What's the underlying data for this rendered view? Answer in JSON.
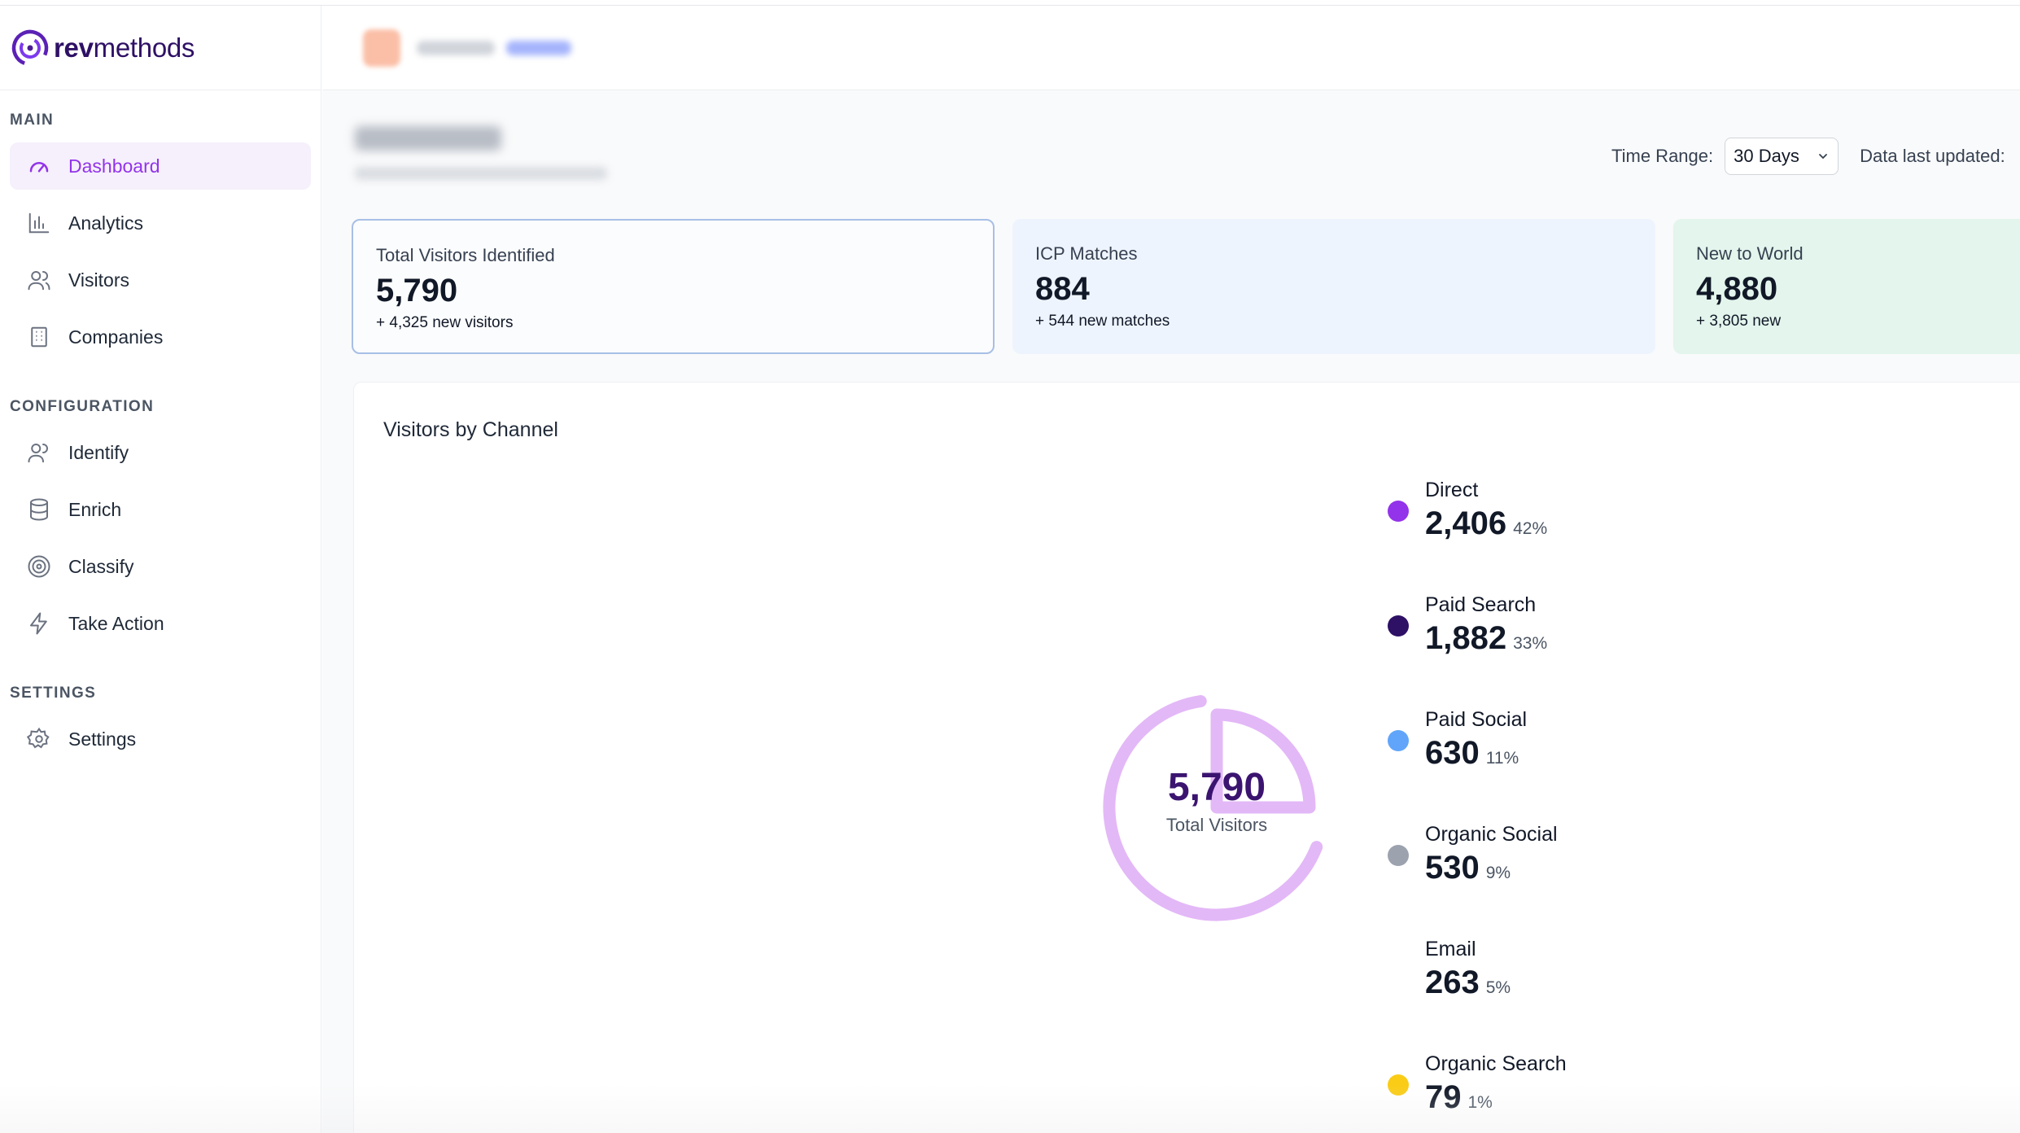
{
  "brand": {
    "bold": "rev",
    "regular": "methods"
  },
  "sidebar": {
    "sections": [
      {
        "label": "MAIN",
        "items": [
          {
            "label": "Dashboard",
            "icon": "gauge-icon",
            "active": true
          },
          {
            "label": "Analytics",
            "icon": "bar-chart-icon"
          },
          {
            "label": "Visitors",
            "icon": "users-icon"
          },
          {
            "label": "Companies",
            "icon": "building-icon"
          }
        ]
      },
      {
        "label": "CONFIGURATION",
        "items": [
          {
            "label": "Identify",
            "icon": "user-icon"
          },
          {
            "label": "Enrich",
            "icon": "database-icon"
          },
          {
            "label": "Classify",
            "icon": "target-icon"
          },
          {
            "label": "Take Action",
            "icon": "lightning-icon"
          }
        ]
      },
      {
        "label": "SETTINGS",
        "items": [
          {
            "label": "Settings",
            "icon": "gear-icon"
          }
        ]
      }
    ]
  },
  "header": {
    "time_range_label": "Time Range:",
    "time_range_value": "30 Days",
    "data_updated_label": "Data last updated:"
  },
  "stats": [
    {
      "label": "Total Visitors Identified",
      "value": "5,790",
      "delta": "+ 4,325 new visitors"
    },
    {
      "label": "ICP Matches",
      "value": "884",
      "delta": "+ 544 new matches"
    },
    {
      "label": "New to World",
      "value": "4,880",
      "delta": "+ 3,805 new"
    }
  ],
  "channel_card": {
    "title": "Visitors by Channel",
    "center_value": "5,790",
    "center_caption": "Total Visitors"
  },
  "chart_data": {
    "type": "pie",
    "title": "Visitors by Channel",
    "total": 5790,
    "categories": [
      "Direct",
      "Paid Search",
      "Paid Social",
      "Organic Social",
      "Email",
      "Organic Search"
    ],
    "values": [
      2406,
      1882,
      630,
      530,
      263,
      79
    ],
    "value_labels": [
      "2,406",
      "1,882",
      "630",
      "530",
      "263",
      "79"
    ],
    "percent_labels": [
      "42%",
      "33%",
      "11%",
      "9%",
      "5%",
      "1%"
    ],
    "colors": [
      "#9333ea",
      "#2e1065",
      "#60a5fa",
      "#9ca3af",
      "",
      "#facc15"
    ],
    "legend_position": "right"
  }
}
